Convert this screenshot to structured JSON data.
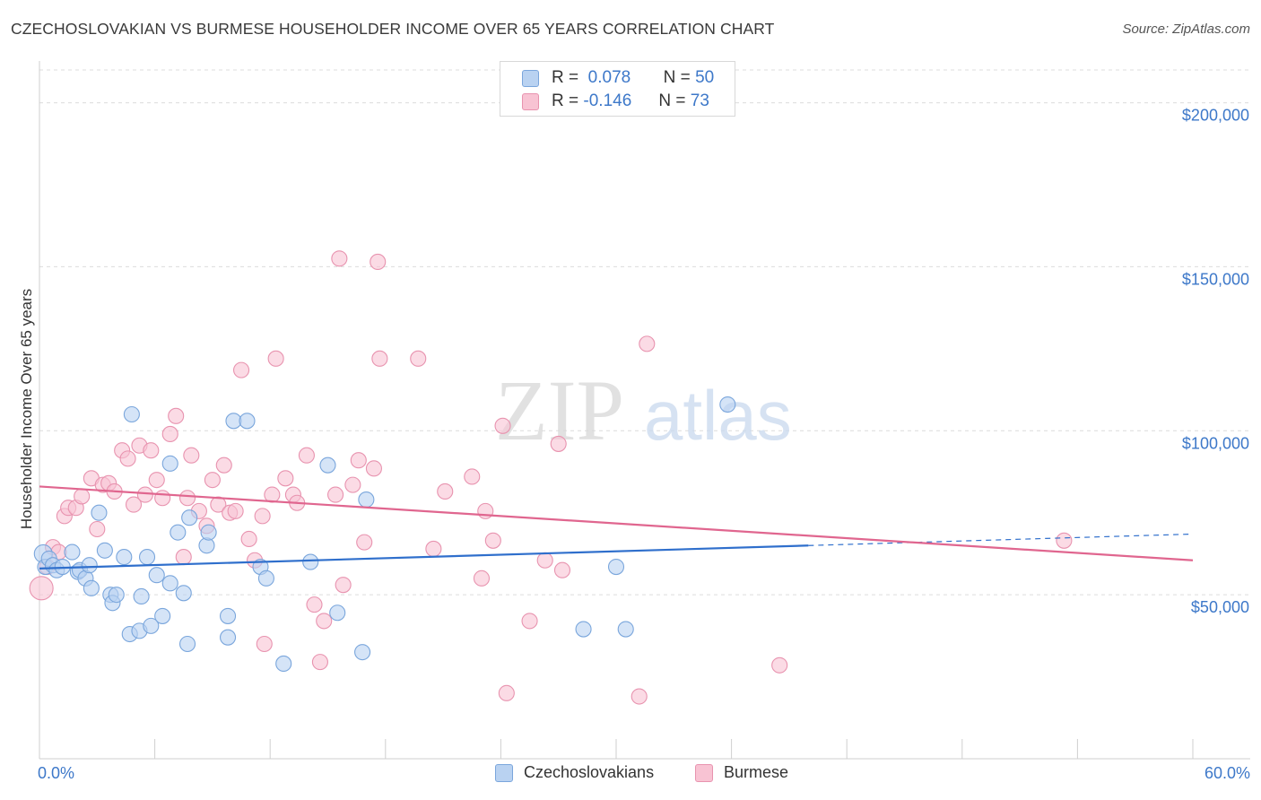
{
  "header": {
    "title": "CZECHOSLOVAKIAN VS BURMESE HOUSEHOLDER INCOME OVER 65 YEARS CORRELATION CHART",
    "source": "Source: ZipAtlas.com"
  },
  "legend_top": {
    "rows": [
      {
        "r_label": "R =",
        "r_value": "0.078",
        "n_label": "N =",
        "n_value": "50"
      },
      {
        "r_label": "R =",
        "r_value": "-0.146",
        "n_label": "N =",
        "n_value": "73"
      }
    ]
  },
  "legend_bottom": {
    "items": [
      "Czechoslovakians",
      "Burmese"
    ]
  },
  "colors": {
    "blue_fill": "#b9d2f1",
    "blue_stroke": "#7aa6dc",
    "blue_line": "#2f6fcc",
    "pink_fill": "#f8c3d3",
    "pink_stroke": "#e893af",
    "pink_line": "#e0668f",
    "tick_label": "#3d78c9",
    "grid": "#dcdcdc"
  },
  "watermark": {
    "zip": "ZIP",
    "atlas": "atlas"
  },
  "chart_data": {
    "type": "scatter",
    "title": "CZECHOSLOVAKIAN VS BURMESE HOUSEHOLDER INCOME OVER 65 YEARS CORRELATION CHART",
    "xlabel": "",
    "ylabel": "Householder Income Over 65 years",
    "xlim": [
      0,
      60
    ],
    "ylim": [
      0,
      210000
    ],
    "x_tick_labels": [
      "0.0%",
      "60.0%"
    ],
    "y_ticks": [
      50000,
      100000,
      150000,
      200000
    ],
    "y_tick_labels": [
      "$50,000",
      "$100,000",
      "$150,000",
      "$200,000"
    ],
    "legend_placement": "top-center",
    "grid": true,
    "series": [
      {
        "name": "Czechoslovakians",
        "r": 0.078,
        "n": 50,
        "trend": {
          "x0": 0,
          "y0": 58000,
          "x1": 40,
          "y1": 65000,
          "dashed_to": 60,
          "dashed_y": 68500
        },
        "points": [
          [
            0.2,
            62500
          ],
          [
            0.3,
            58500
          ],
          [
            0.5,
            61000
          ],
          [
            0.7,
            59000
          ],
          [
            0.9,
            57500
          ],
          [
            1.2,
            58500
          ],
          [
            1.7,
            63000
          ],
          [
            2.0,
            57000
          ],
          [
            2.1,
            57500
          ],
          [
            2.4,
            55000
          ],
          [
            2.6,
            59000
          ],
          [
            2.7,
            52000
          ],
          [
            3.1,
            75000
          ],
          [
            3.4,
            63500
          ],
          [
            3.7,
            50000
          ],
          [
            3.8,
            47500
          ],
          [
            4.0,
            50000
          ],
          [
            4.4,
            61500
          ],
          [
            4.7,
            38000
          ],
          [
            4.8,
            105000
          ],
          [
            5.3,
            49500
          ],
          [
            5.2,
            39000
          ],
          [
            5.6,
            61500
          ],
          [
            5.8,
            40500
          ],
          [
            6.1,
            56000
          ],
          [
            6.4,
            43500
          ],
          [
            6.8,
            90000
          ],
          [
            6.8,
            53500
          ],
          [
            7.2,
            69000
          ],
          [
            7.5,
            50500
          ],
          [
            7.7,
            35000
          ],
          [
            7.8,
            73500
          ],
          [
            8.7,
            65000
          ],
          [
            8.8,
            69000
          ],
          [
            9.8,
            43500
          ],
          [
            9.8,
            37000
          ],
          [
            10.1,
            103000
          ],
          [
            10.8,
            103000
          ],
          [
            11.5,
            58500
          ],
          [
            11.8,
            55000
          ],
          [
            12.7,
            29000
          ],
          [
            14.1,
            60000
          ],
          [
            15.0,
            89500
          ],
          [
            15.5,
            44500
          ],
          [
            16.8,
            32500
          ],
          [
            17.0,
            79000
          ],
          [
            28.3,
            39500
          ],
          [
            30.0,
            58500
          ],
          [
            30.5,
            39500
          ],
          [
            35.8,
            108000
          ]
        ]
      },
      {
        "name": "Burmese",
        "r": -0.146,
        "n": 73,
        "trend": {
          "x0": 0,
          "y0": 83000,
          "x1": 60,
          "y1": 60500
        },
        "points": [
          [
            0.1,
            52000
          ],
          [
            0.4,
            58500
          ],
          [
            0.7,
            64500
          ],
          [
            1.0,
            63000
          ],
          [
            1.3,
            74000
          ],
          [
            1.5,
            76500
          ],
          [
            1.9,
            76500
          ],
          [
            2.2,
            80000
          ],
          [
            2.7,
            85500
          ],
          [
            3.0,
            70000
          ],
          [
            3.3,
            83500
          ],
          [
            3.6,
            84000
          ],
          [
            3.9,
            81500
          ],
          [
            4.3,
            94000
          ],
          [
            4.6,
            91500
          ],
          [
            4.9,
            77500
          ],
          [
            5.2,
            95500
          ],
          [
            5.5,
            80500
          ],
          [
            5.8,
            94000
          ],
          [
            6.1,
            85000
          ],
          [
            6.4,
            79500
          ],
          [
            6.8,
            99000
          ],
          [
            7.1,
            104500
          ],
          [
            7.5,
            61500
          ],
          [
            7.7,
            79500
          ],
          [
            7.9,
            92500
          ],
          [
            8.3,
            75500
          ],
          [
            8.7,
            71000
          ],
          [
            9.0,
            85000
          ],
          [
            9.3,
            77500
          ],
          [
            9.6,
            89500
          ],
          [
            9.9,
            75000
          ],
          [
            10.2,
            75500
          ],
          [
            10.5,
            118500
          ],
          [
            10.9,
            67000
          ],
          [
            11.2,
            60500
          ],
          [
            11.6,
            74000
          ],
          [
            11.7,
            35000
          ],
          [
            12.1,
            80500
          ],
          [
            12.3,
            122000
          ],
          [
            12.8,
            85500
          ],
          [
            13.2,
            80500
          ],
          [
            13.4,
            78000
          ],
          [
            13.9,
            92500
          ],
          [
            14.3,
            47000
          ],
          [
            14.6,
            29500
          ],
          [
            14.8,
            42000
          ],
          [
            15.4,
            80500
          ],
          [
            15.6,
            152500
          ],
          [
            15.8,
            53000
          ],
          [
            16.3,
            83500
          ],
          [
            16.6,
            91000
          ],
          [
            16.9,
            66000
          ],
          [
            17.4,
            88500
          ],
          [
            17.6,
            151500
          ],
          [
            17.7,
            122000
          ],
          [
            19.7,
            122000
          ],
          [
            20.5,
            64000
          ],
          [
            21.1,
            81500
          ],
          [
            22.5,
            86000
          ],
          [
            23.0,
            55000
          ],
          [
            23.2,
            75500
          ],
          [
            23.6,
            66500
          ],
          [
            24.1,
            101500
          ],
          [
            24.3,
            20000
          ],
          [
            25.5,
            42000
          ],
          [
            26.3,
            60500
          ],
          [
            27.0,
            96000
          ],
          [
            27.2,
            57500
          ],
          [
            31.2,
            19000
          ],
          [
            31.6,
            126500
          ],
          [
            38.5,
            28500
          ],
          [
            53.3,
            66500
          ]
        ]
      }
    ]
  }
}
